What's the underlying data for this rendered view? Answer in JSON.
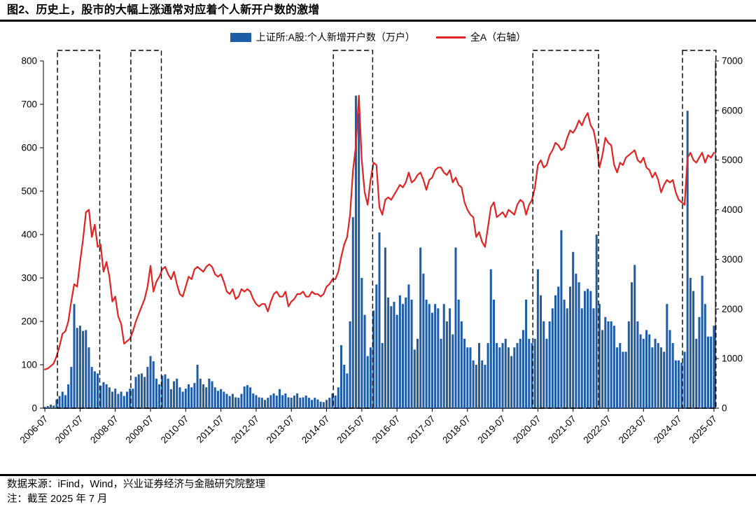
{
  "header": {
    "title": "图2、历史上，股市的大幅上涨通常对应着个人新开户数的激增"
  },
  "legend": {
    "bar_label": "上证所:A股:个人新增开户数（万户）",
    "line_label": "全A（右轴）"
  },
  "footer": {
    "source": "数据来源：iFind，Wind，兴业证券经济与金融研究院整理",
    "note": "注：截至 2025 年 7 月"
  },
  "colors": {
    "bar": "#1D5CA6",
    "line": "#E02424",
    "axis": "#000000",
    "highlight_box": "#000000"
  },
  "chart_data": {
    "type": "bar+line",
    "title": "图2、历史上，股市的大幅上涨通常对应着个人新开户数的激增",
    "frequency": "monthly",
    "x_start": "2006-07",
    "x_end": "2025-07",
    "x_tick_labels": [
      "2006-07",
      "2007-07",
      "2008-07",
      "2009-07",
      "2010-07",
      "2011-07",
      "2012-07",
      "2013-07",
      "2014-07",
      "2015-07",
      "2016-07",
      "2017-07",
      "2018-07",
      "2019-07",
      "2020-07",
      "2021-07",
      "2022-07",
      "2023-07",
      "2024-07",
      "2025-07"
    ],
    "left_axis": {
      "series": "上证所:A股:个人新增开户数（万户）",
      "min": 0,
      "max": 800,
      "step": 100
    },
    "right_axis": {
      "series": "全A（右轴）",
      "min": 0,
      "max": 7000,
      "step": 1000
    },
    "legend_position": "top-center",
    "grid": false,
    "bars_by_year": {
      "2006": [
        3,
        5,
        8,
        6,
        20,
        28
      ],
      "2007": [
        38,
        30,
        55,
        95,
        240,
        185,
        190,
        178,
        180,
        140,
        95,
        85
      ],
      "2008": [
        80,
        52,
        60,
        55,
        48,
        38,
        45,
        33,
        38,
        28,
        38,
        45
      ],
      "2009": [
        45,
        72,
        78,
        80,
        72,
        95,
        120,
        108,
        68,
        55,
        75,
        78
      ],
      "2010": [
        68,
        44,
        62,
        68,
        48,
        38,
        45,
        55,
        48,
        58,
        100,
        68
      ],
      "2011": [
        55,
        48,
        68,
        62,
        48,
        40,
        44,
        38,
        33,
        28,
        33,
        25
      ],
      "2012": [
        24,
        33,
        50,
        53,
        48,
        34,
        30,
        25,
        24,
        19,
        24,
        30
      ],
      "2013": [
        34,
        29,
        44,
        30,
        34,
        25,
        24,
        29,
        34,
        24,
        25,
        29
      ],
      "2014": [
        24,
        19,
        24,
        20,
        15,
        14,
        19,
        24,
        34,
        29,
        48,
        145
      ],
      "2015": [
        100,
        80,
        200,
        440,
        720,
        680,
        300,
        215,
        120,
        140,
        225,
        285
      ],
      "2016": [
        405,
        150,
        370,
        255,
        235,
        245,
        215,
        260,
        240,
        255,
        285,
        250
      ],
      "2017": [
        135,
        160,
        370,
        310,
        250,
        240,
        220,
        240,
        230,
        160,
        240,
        200
      ],
      "2018": [
        230,
        170,
        370,
        250,
        200,
        160,
        140,
        140,
        110,
        100,
        150,
        110
      ],
      "2019": [
        100,
        150,
        320,
        250,
        150,
        140,
        150,
        160,
        140,
        120,
        140,
        150
      ],
      "2020": [
        160,
        180,
        250,
        160,
        150,
        160,
        320,
        260,
        200,
        160,
        200,
        230
      ],
      "2021": [
        260,
        280,
        410,
        250,
        230,
        280,
        360,
        310,
        290,
        230,
        270,
        275
      ],
      "2022": [
        270,
        230,
        400,
        240,
        180,
        210,
        200,
        200,
        190,
        140,
        150,
        130
      ],
      "2023": [
        130,
        200,
        290,
        330,
        200,
        170,
        160,
        180,
        170,
        140,
        160,
        150
      ],
      "2024": [
        140,
        130,
        240,
        180,
        150,
        110,
        110,
        105,
        130,
        685,
        300,
        270
      ],
      "2025": [
        160,
        210,
        305,
        240,
        165,
        165,
        190
      ]
    },
    "line_by_year": {
      "2006": [
        780,
        800,
        850,
        900,
        1050,
        1250
      ],
      "2007": [
        1500,
        1550,
        1750,
        2150,
        2500,
        2450,
        2950,
        3400,
        3950,
        4000,
        3450,
        3700
      ],
      "2008": [
        3250,
        3300,
        2750,
        2950,
        2650,
        2150,
        2250,
        1850,
        1700,
        1300,
        1350,
        1400
      ],
      "2009": [
        1550,
        1750,
        1900,
        2050,
        2200,
        2450,
        2870,
        2350,
        2550,
        2650,
        2800,
        2850
      ],
      "2010": [
        2700,
        2600,
        2750,
        2500,
        2300,
        2250,
        2450,
        2650,
        2600,
        2800,
        2850,
        2800
      ],
      "2011": [
        2750,
        2850,
        2900,
        2850,
        2700,
        2650,
        2700,
        2550,
        2350,
        2300,
        2400,
        2200
      ],
      "2012": [
        2250,
        2400,
        2350,
        2400,
        2350,
        2200,
        2100,
        2050,
        2100,
        2100,
        1950,
        2150
      ],
      "2013": [
        2300,
        2350,
        2250,
        2250,
        2350,
        2050,
        2150,
        2200,
        2300,
        2300,
        2350,
        2250
      ],
      "2014": [
        2250,
        2350,
        2300,
        2300,
        2250,
        2300,
        2450,
        2500,
        2600,
        2600,
        2750,
        3050
      ],
      "2015": [
        3300,
        3450,
        3900,
        4800,
        5300,
        6300,
        5000,
        4350,
        4100,
        4600,
        4950,
        4900
      ],
      "2016": [
        4050,
        3900,
        4200,
        4250,
        4200,
        4300,
        4400,
        4500,
        4450,
        4550,
        4750,
        4550
      ],
      "2017": [
        4600,
        4700,
        4750,
        4600,
        4400,
        4600,
        4650,
        4800,
        4850,
        4850,
        4750,
        4700
      ],
      "2018": [
        4800,
        4550,
        4650,
        4500,
        4450,
        4150,
        4000,
        3900,
        3850,
        3450,
        3550,
        3350
      ],
      "2019": [
        3250,
        3650,
        4050,
        4150,
        3850,
        3900,
        3950,
        3850,
        4000,
        3950,
        3900,
        4100
      ],
      "2020": [
        4200,
        4150,
        3900,
        4100,
        4200,
        4450,
        4900,
        5000,
        4850,
        4900,
        5100,
        5200
      ],
      "2021": [
        5350,
        5300,
        5200,
        5250,
        5450,
        5600,
        5550,
        5650,
        5800,
        5700,
        5850,
        5950
      ],
      "2022": [
        5700,
        5600,
        5300,
        4850,
        5100,
        5450,
        5350,
        5300,
        4900,
        4750,
        4950,
        4900
      ],
      "2023": [
        5050,
        5100,
        5150,
        5200,
        5000,
        4950,
        5050,
        4850,
        4800,
        4650,
        4750,
        4600
      ],
      "2024": [
        4350,
        4500,
        4600,
        4550,
        4600,
        4350,
        4200,
        4150,
        4100,
        5050,
        5150,
        5000
      ],
      "2025": [
        4950,
        5050,
        5150,
        4950,
        5100,
        5050,
        5150
      ]
    },
    "highlight_boxes": [
      {
        "start": "2006-12",
        "end": "2008-01"
      },
      {
        "start": "2009-01",
        "end": "2009-10"
      },
      {
        "start": "2014-10",
        "end": "2015-10"
      },
      {
        "start": "2020-06",
        "end": "2022-03"
      },
      {
        "start": "2024-09",
        "end": "2025-07"
      }
    ]
  }
}
